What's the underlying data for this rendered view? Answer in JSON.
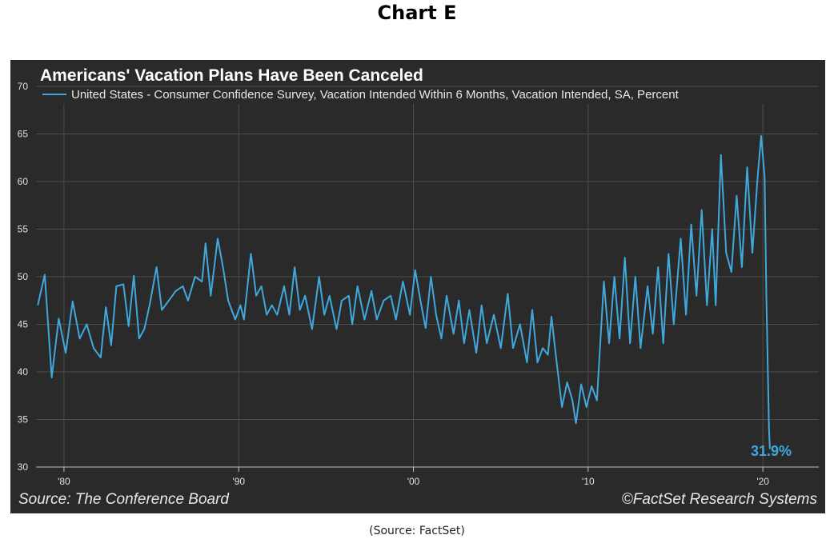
{
  "heading": "Chart E",
  "footer_source": "(Source:  FactSet)",
  "chart_data": {
    "type": "line",
    "title": "Americans' Vacation Plans Have Been Canceled",
    "series": [
      {
        "name": "United States - Consumer Confidence Survey, Vacation Intended Within 6 Months, Vacation Intended, SA, Percent",
        "color": "#3fa9dd",
        "points": [
          [
            1978.5,
            47.0
          ],
          [
            1978.9,
            50.2
          ],
          [
            1979.3,
            39.4
          ],
          [
            1979.7,
            45.6
          ],
          [
            1980.1,
            42.0
          ],
          [
            1980.5,
            47.4
          ],
          [
            1980.9,
            43.5
          ],
          [
            1981.3,
            45.0
          ],
          [
            1981.7,
            42.5
          ],
          [
            1982.1,
            41.5
          ],
          [
            1982.4,
            46.8
          ],
          [
            1982.7,
            42.8
          ],
          [
            1983.0,
            49.0
          ],
          [
            1983.4,
            49.2
          ],
          [
            1983.7,
            44.8
          ],
          [
            1984.0,
            50.1
          ],
          [
            1984.3,
            43.5
          ],
          [
            1984.6,
            44.5
          ],
          [
            1984.9,
            47.0
          ],
          [
            1985.3,
            51.0
          ],
          [
            1985.6,
            46.5
          ],
          [
            1986.0,
            47.5
          ],
          [
            1986.4,
            48.5
          ],
          [
            1986.8,
            49.0
          ],
          [
            1987.1,
            47.5
          ],
          [
            1987.5,
            50.0
          ],
          [
            1987.9,
            49.5
          ],
          [
            1988.1,
            53.5
          ],
          [
            1988.4,
            48.0
          ],
          [
            1988.8,
            54.0
          ],
          [
            1989.1,
            51.0
          ],
          [
            1989.4,
            47.5
          ],
          [
            1989.8,
            45.5
          ],
          [
            1990.1,
            47.0
          ],
          [
            1990.3,
            45.5
          ],
          [
            1990.7,
            52.4
          ],
          [
            1991.0,
            48.0
          ],
          [
            1991.3,
            49.0
          ],
          [
            1991.6,
            46.0
          ],
          [
            1991.9,
            47.0
          ],
          [
            1992.2,
            46.0
          ],
          [
            1992.6,
            49.0
          ],
          [
            1992.9,
            46.0
          ],
          [
            1993.2,
            51.0
          ],
          [
            1993.5,
            46.5
          ],
          [
            1993.8,
            48.0
          ],
          [
            1994.2,
            44.5
          ],
          [
            1994.6,
            50.0
          ],
          [
            1994.9,
            46.0
          ],
          [
            1995.2,
            48.0
          ],
          [
            1995.6,
            44.5
          ],
          [
            1995.9,
            47.5
          ],
          [
            1996.3,
            48.0
          ],
          [
            1996.5,
            45.0
          ],
          [
            1996.8,
            49.0
          ],
          [
            1997.2,
            45.5
          ],
          [
            1997.6,
            48.5
          ],
          [
            1997.9,
            45.5
          ],
          [
            1998.3,
            47.5
          ],
          [
            1998.7,
            48.0
          ],
          [
            1999.0,
            45.5
          ],
          [
            1999.4,
            49.5
          ],
          [
            1999.8,
            46.0
          ],
          [
            2000.1,
            50.7
          ],
          [
            2000.4,
            47.5
          ],
          [
            2000.7,
            44.6
          ],
          [
            2001.0,
            50.0
          ],
          [
            2001.3,
            46.0
          ],
          [
            2001.6,
            43.5
          ],
          [
            2001.9,
            48.0
          ],
          [
            2002.3,
            44.0
          ],
          [
            2002.6,
            47.5
          ],
          [
            2002.9,
            43.0
          ],
          [
            2003.2,
            46.5
          ],
          [
            2003.6,
            42.0
          ],
          [
            2003.9,
            47.0
          ],
          [
            2004.2,
            43.0
          ],
          [
            2004.6,
            46.0
          ],
          [
            2005.0,
            42.5
          ],
          [
            2005.4,
            48.2
          ],
          [
            2005.7,
            42.5
          ],
          [
            2006.1,
            45.0
          ],
          [
            2006.5,
            41.0
          ],
          [
            2006.8,
            46.5
          ],
          [
            2007.1,
            41.0
          ],
          [
            2007.4,
            42.5
          ],
          [
            2007.7,
            41.8
          ],
          [
            2007.9,
            45.8
          ],
          [
            2008.2,
            41.0
          ],
          [
            2008.5,
            36.3
          ],
          [
            2008.8,
            38.9
          ],
          [
            2009.1,
            37.0
          ],
          [
            2009.3,
            34.6
          ],
          [
            2009.6,
            38.7
          ],
          [
            2009.9,
            36.3
          ],
          [
            2010.2,
            38.5
          ],
          [
            2010.5,
            37.0
          ],
          [
            2010.9,
            49.5
          ],
          [
            2011.2,
            43.0
          ],
          [
            2011.5,
            50.0
          ],
          [
            2011.8,
            43.5
          ],
          [
            2012.1,
            52.0
          ],
          [
            2012.4,
            43.0
          ],
          [
            2012.7,
            50.0
          ],
          [
            2013.0,
            42.5
          ],
          [
            2013.4,
            49.0
          ],
          [
            2013.7,
            44.0
          ],
          [
            2014.0,
            51.0
          ],
          [
            2014.3,
            43.0
          ],
          [
            2014.6,
            52.4
          ],
          [
            2014.9,
            45.0
          ],
          [
            2015.3,
            54.0
          ],
          [
            2015.6,
            46.0
          ],
          [
            2015.9,
            55.5
          ],
          [
            2016.2,
            48.0
          ],
          [
            2016.5,
            57.0
          ],
          [
            2016.8,
            47.0
          ],
          [
            2017.1,
            55.0
          ],
          [
            2017.3,
            47.0
          ],
          [
            2017.6,
            62.8
          ],
          [
            2017.9,
            52.5
          ],
          [
            2018.2,
            50.5
          ],
          [
            2018.5,
            58.5
          ],
          [
            2018.8,
            51.0
          ],
          [
            2019.1,
            61.5
          ],
          [
            2019.4,
            52.5
          ],
          [
            2019.7,
            60.5
          ],
          [
            2019.9,
            64.8
          ],
          [
            2020.1,
            60.5
          ],
          [
            2020.2,
            48.0
          ],
          [
            2020.3,
            38.6
          ],
          [
            2020.35,
            34.0
          ],
          [
            2020.4,
            31.9
          ]
        ]
      }
    ],
    "xlim": [
      1978.4,
      2023.2
    ],
    "ylim": [
      30,
      70
    ],
    "x_ticks": [
      1980,
      1990,
      2000,
      2010,
      2020
    ],
    "x_tick_labels": [
      "'80",
      "'90",
      "'00",
      "'10",
      "'20"
    ],
    "y_ticks": [
      30,
      35,
      40,
      45,
      50,
      55,
      60,
      65,
      70
    ],
    "y_tick_labels": [
      "30",
      "35",
      "40",
      "45",
      "50",
      "55",
      "60",
      "65",
      "70"
    ],
    "grid": true,
    "legend_position": "top-left",
    "end_label": "31.9%",
    "source_note": "Source: The Conference Board",
    "copyright_note": "©FactSet Research Systems",
    "background": "#2a2a2a",
    "grid_color": "#4d4d4d"
  }
}
